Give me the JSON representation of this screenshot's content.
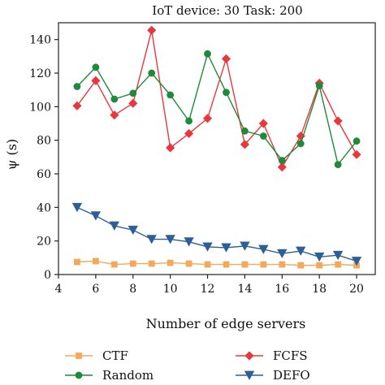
{
  "chart_data": {
    "type": "line",
    "title": "IoT device: 30 Task: 200",
    "xlabel": "Number of edge servers",
    "ylabel": "ψ (s)",
    "xlim": [
      4,
      21
    ],
    "ylim": [
      0,
      150
    ],
    "xticks": [
      4,
      6,
      8,
      10,
      12,
      14,
      16,
      18,
      20
    ],
    "yticks": [
      0,
      20,
      40,
      60,
      80,
      100,
      120,
      140
    ],
    "x": [
      5,
      6,
      7,
      8,
      9,
      10,
      11,
      12,
      13,
      14,
      15,
      16,
      17,
      18,
      19,
      20
    ],
    "grid": false,
    "legend_position": "bottom",
    "series": [
      {
        "name": "CTF",
        "color": "#f5a85a",
        "marker": "square",
        "values": [
          7.5,
          8,
          6,
          6.5,
          6.5,
          7,
          6.5,
          6,
          6,
          6,
          6,
          6,
          5.5,
          5.5,
          6,
          5.5
        ]
      },
      {
        "name": "FCFS",
        "color": "#e8383d",
        "marker": "diamond",
        "values": [
          100.5,
          115.5,
          95,
          102,
          145.5,
          75.5,
          84,
          93,
          128.5,
          77.5,
          90,
          64,
          82.5,
          114,
          91.5,
          71.5
        ]
      },
      {
        "name": "Random",
        "color": "#1e8a3c",
        "marker": "circle",
        "values": [
          112,
          123.5,
          104.5,
          108,
          120,
          107,
          91.5,
          131.5,
          108.5,
          85.5,
          82.5,
          68,
          78,
          112.5,
          65.5,
          79.5
        ]
      },
      {
        "name": "DEFO",
        "color": "#2c5f97",
        "marker": "triangle-down",
        "values": [
          40,
          35,
          29,
          26.5,
          21,
          21,
          19.5,
          16.5,
          16,
          17,
          15,
          12.5,
          14,
          10.5,
          11.5,
          8
        ]
      }
    ]
  }
}
